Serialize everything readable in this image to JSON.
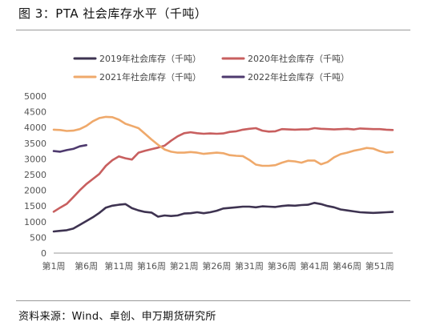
{
  "figure": {
    "title": "图 3：PTA 社会库存水平（千吨）",
    "source": "资料来源：Wind、卓创、申万期货研究所"
  },
  "chart_data": {
    "type": "line",
    "title": "",
    "xlabel": "",
    "ylabel": "",
    "ylim": [
      0,
      5000
    ],
    "yticks": [
      0,
      500,
      1000,
      1500,
      2000,
      2500,
      3000,
      3500,
      4000,
      4500,
      5000
    ],
    "xtick_labels": [
      "第1周",
      "第6周",
      "第11周",
      "第16周",
      "第21周",
      "第26周",
      "第31周",
      "第36周",
      "第41周",
      "第46周",
      "第51周"
    ],
    "xtick_weeks": [
      1,
      6,
      11,
      16,
      21,
      26,
      31,
      36,
      41,
      46,
      51
    ],
    "x_range": [
      1,
      53
    ],
    "grid": false,
    "legend_position": "top",
    "series": [
      {
        "name": "2019年社会库存（千吨）",
        "color": "#3e3351",
        "values": [
          690,
          710,
          730,
          780,
          900,
          1020,
          1140,
          1280,
          1450,
          1510,
          1540,
          1560,
          1430,
          1360,
          1310,
          1290,
          1160,
          1200,
          1180,
          1200,
          1260,
          1270,
          1300,
          1270,
          1300,
          1350,
          1420,
          1440,
          1460,
          1480,
          1480,
          1460,
          1490,
          1480,
          1470,
          1500,
          1520,
          1510,
          1530,
          1540,
          1600,
          1560,
          1500,
          1460,
          1390,
          1360,
          1330,
          1300,
          1290,
          1280,
          1290,
          1300,
          1310
        ]
      },
      {
        "name": "2020年社会库存（千吨）",
        "color": "#c85f5f",
        "values": [
          1320,
          1450,
          1570,
          1780,
          2000,
          2200,
          2360,
          2520,
          2780,
          2960,
          3080,
          3020,
          2980,
          3200,
          3260,
          3310,
          3360,
          3420,
          3580,
          3720,
          3820,
          3850,
          3820,
          3800,
          3810,
          3800,
          3810,
          3860,
          3880,
          3930,
          3960,
          3980,
          3900,
          3870,
          3880,
          3950,
          3940,
          3930,
          3940,
          3940,
          3980,
          3960,
          3950,
          3940,
          3950,
          3960,
          3940,
          3970,
          3960,
          3950,
          3950,
          3930,
          3920
        ]
      },
      {
        "name": "2021年社会库存（千吨）",
        "color": "#efa96b",
        "values": [
          3930,
          3920,
          3890,
          3900,
          3950,
          4050,
          4200,
          4300,
          4340,
          4330,
          4250,
          4120,
          4050,
          3980,
          3800,
          3620,
          3450,
          3300,
          3230,
          3200,
          3200,
          3220,
          3200,
          3160,
          3180,
          3200,
          3180,
          3120,
          3100,
          3090,
          2970,
          2820,
          2780,
          2780,
          2800,
          2880,
          2940,
          2920,
          2880,
          2950,
          2950,
          2830,
          2900,
          3050,
          3150,
          3200,
          3260,
          3300,
          3350,
          3330,
          3250,
          3200,
          3220
        ]
      },
      {
        "name": "2022年社会库存（千吨）",
        "color": "#4e3a6e",
        "values": [
          3250,
          3230,
          3280,
          3320,
          3400,
          3440
        ]
      }
    ]
  }
}
